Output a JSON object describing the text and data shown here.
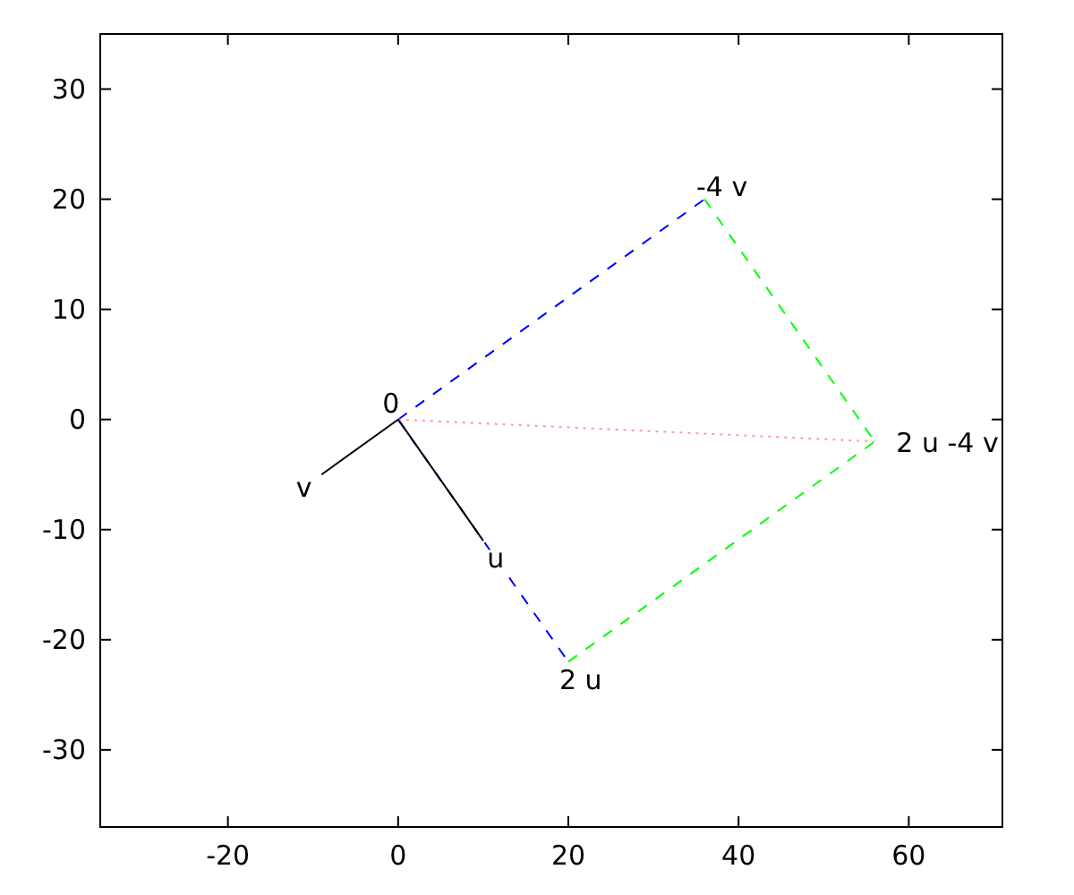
{
  "chart_data": {
    "type": "line",
    "xlim": [
      -35,
      71
    ],
    "ylim": [
      -37,
      35
    ],
    "xticks": [
      -20,
      0,
      20,
      40,
      60
    ],
    "yticks": [
      -30,
      -20,
      -10,
      0,
      10,
      20,
      30
    ],
    "grid": false,
    "marker": "none",
    "series": [
      {
        "color": "#0000ff",
        "line_style": "dashed",
        "x": [
          0,
          36
        ],
        "values": [
          0,
          20
        ]
      },
      {
        "color": "#0000ff",
        "line_style": "dashed",
        "x": [
          0,
          20
        ],
        "values": [
          0,
          -22
        ]
      },
      {
        "color": "#00ff00",
        "line_style": "dashed",
        "x": [
          36,
          56
        ],
        "values": [
          20,
          -2
        ]
      },
      {
        "color": "#00ff00",
        "line_style": "dashed",
        "x": [
          20,
          56
        ],
        "values": [
          -22,
          -2
        ]
      },
      {
        "color": "#ff9999",
        "line_style": "dotted",
        "x": [
          0,
          56
        ],
        "values": [
          0,
          -2
        ]
      },
      {
        "color": "#000000",
        "line_style": "solid",
        "x": [
          0,
          10
        ],
        "values": [
          0,
          -11
        ]
      },
      {
        "color": "#000000",
        "line_style": "solid",
        "x": [
          0,
          -9
        ],
        "values": [
          0,
          -5
        ]
      }
    ],
    "annotations": [
      {
        "text": "0",
        "x": 0,
        "y": 0
      },
      {
        "text": "v",
        "x": -9,
        "y": -5
      },
      {
        "text": "u",
        "x": 10,
        "y": -11
      },
      {
        "text": "2 u",
        "x": 20,
        "y": -22
      },
      {
        "text": "-4 v",
        "x": 36,
        "y": 20
      },
      {
        "text": "2 u -4 v",
        "x": 56,
        "y": -2
      }
    ]
  }
}
